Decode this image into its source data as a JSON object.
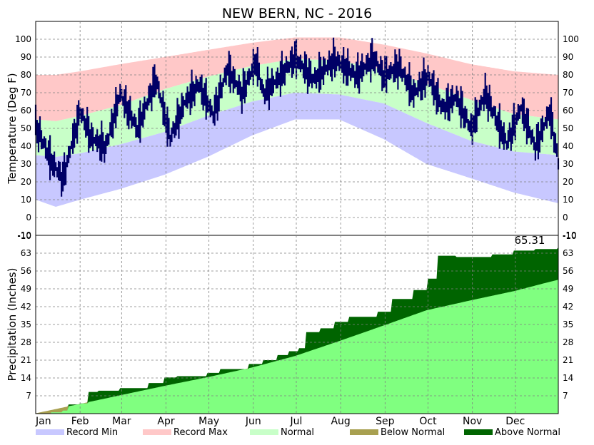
{
  "chart_data": {
    "type": "area",
    "title": "NEW BERN, NC - 2016",
    "months": [
      "Jan",
      "Feb",
      "Mar",
      "Apr",
      "May",
      "Jun",
      "Jul",
      "Aug",
      "Sep",
      "Oct",
      "Nov",
      "Dec"
    ],
    "temperature": {
      "ylabel": "Temperature (Deg F)",
      "ylim": [
        -10,
        110
      ],
      "yticks": [
        -10,
        0,
        10,
        20,
        30,
        40,
        50,
        60,
        70,
        80,
        90,
        100
      ],
      "grid": true,
      "bands": {
        "record_max": [
          [
            1,
            80
          ],
          [
            15,
            80
          ],
          [
            32,
            82
          ],
          [
            60,
            86
          ],
          [
            91,
            90
          ],
          [
            121,
            94
          ],
          [
            152,
            98
          ],
          [
            182,
            101
          ],
          [
            213,
            101
          ],
          [
            244,
            97
          ],
          [
            274,
            92
          ],
          [
            305,
            86
          ],
          [
            335,
            82
          ],
          [
            366,
            80
          ]
        ],
        "normal_max": [
          [
            1,
            55
          ],
          [
            15,
            54
          ],
          [
            32,
            57
          ],
          [
            60,
            63
          ],
          [
            91,
            72
          ],
          [
            121,
            79
          ],
          [
            152,
            85
          ],
          [
            182,
            89
          ],
          [
            213,
            88
          ],
          [
            244,
            83
          ],
          [
            274,
            75
          ],
          [
            305,
            66
          ],
          [
            335,
            58
          ],
          [
            366,
            55
          ]
        ],
        "normal_min": [
          [
            1,
            35
          ],
          [
            15,
            34
          ],
          [
            32,
            36
          ],
          [
            60,
            41
          ],
          [
            91,
            48
          ],
          [
            121,
            57
          ],
          [
            152,
            65
          ],
          [
            182,
            70
          ],
          [
            213,
            69
          ],
          [
            244,
            64
          ],
          [
            274,
            53
          ],
          [
            305,
            43
          ],
          [
            335,
            37
          ],
          [
            366,
            35
          ]
        ],
        "record_min": [
          [
            1,
            10
          ],
          [
            15,
            6
          ],
          [
            32,
            10
          ],
          [
            60,
            16
          ],
          [
            91,
            24
          ],
          [
            121,
            34
          ],
          [
            152,
            46
          ],
          [
            182,
            55
          ],
          [
            213,
            55
          ],
          [
            244,
            44
          ],
          [
            274,
            30
          ],
          [
            305,
            22
          ],
          [
            335,
            14
          ],
          [
            366,
            8
          ]
        ]
      },
      "observed_daily": [
        [
          1,
          52
        ],
        [
          12,
          32
        ],
        [
          20,
          22
        ],
        [
          32,
          60
        ],
        [
          40,
          45
        ],
        [
          50,
          40
        ],
        [
          60,
          70
        ],
        [
          72,
          50
        ],
        [
          85,
          78
        ],
        [
          95,
          45
        ],
        [
          105,
          65
        ],
        [
          115,
          75
        ],
        [
          125,
          58
        ],
        [
          135,
          84
        ],
        [
          145,
          70
        ],
        [
          155,
          88
        ],
        [
          160,
          70
        ],
        [
          170,
          78
        ],
        [
          182,
          90
        ],
        [
          195,
          78
        ],
        [
          210,
          89
        ],
        [
          225,
          80
        ],
        [
          237,
          90
        ],
        [
          244,
          80
        ],
        [
          255,
          85
        ],
        [
          265,
          70
        ],
        [
          275,
          80
        ],
        [
          285,
          62
        ],
        [
          295,
          68
        ],
        [
          305,
          50
        ],
        [
          315,
          70
        ],
        [
          330,
          42
        ],
        [
          340,
          62
        ],
        [
          350,
          40
        ],
        [
          360,
          60
        ],
        [
          366,
          32
        ]
      ]
    },
    "precipitation": {
      "ylabel": "Precipitation (Inches)",
      "ylim": [
        0,
        70
      ],
      "yticks": [
        7,
        14,
        21,
        28,
        35,
        42,
        49,
        56,
        63
      ],
      "grid": true,
      "total_label": "65.31",
      "normal_cumulative": [
        [
          0,
          0
        ],
        [
          31,
          3.7
        ],
        [
          60,
          7.2
        ],
        [
          91,
          10.9
        ],
        [
          121,
          14.3
        ],
        [
          152,
          18.1
        ],
        [
          182,
          22.6
        ],
        [
          213,
          28.5
        ],
        [
          244,
          34.6
        ],
        [
          274,
          40.6
        ],
        [
          305,
          44.5
        ],
        [
          335,
          48.1
        ],
        [
          366,
          52.6
        ]
      ],
      "observed_cumulative": [
        [
          1,
          0
        ],
        [
          12,
          0.5
        ],
        [
          20,
          1.2
        ],
        [
          24,
          3.6
        ],
        [
          32,
          4
        ],
        [
          38,
          8.5
        ],
        [
          45,
          9
        ],
        [
          60,
          10
        ],
        [
          80,
          12
        ],
        [
          91,
          14.2
        ],
        [
          100,
          14.7
        ],
        [
          121,
          16
        ],
        [
          130,
          17.5
        ],
        [
          150,
          19.5
        ],
        [
          160,
          21
        ],
        [
          170,
          23
        ],
        [
          178,
          24.5
        ],
        [
          185,
          25.7
        ],
        [
          190,
          32
        ],
        [
          200,
          33.5
        ],
        [
          210,
          36
        ],
        [
          220,
          38
        ],
        [
          240,
          40
        ],
        [
          250,
          45
        ],
        [
          265,
          48.5
        ],
        [
          275,
          53
        ],
        [
          282,
          62
        ],
        [
          295,
          61.5
        ],
        [
          320,
          62.5
        ],
        [
          335,
          64
        ],
        [
          350,
          64.6
        ],
        [
          366,
          65.31
        ]
      ]
    },
    "legend": [
      {
        "label": "Record Min",
        "color": "#c8c8ff"
      },
      {
        "label": "Record Max",
        "color": "#ffc8c8"
      },
      {
        "label": "Normal",
        "color": "#c8ffc8"
      },
      {
        "label": "Below Normal",
        "color": "#a8a050"
      },
      {
        "label": "Above Normal",
        "color": "#006400"
      }
    ],
    "colors": {
      "record_min": "#c8c8ff",
      "record_max": "#ffc8c8",
      "normal": "#c8ffc8",
      "observed": "#000066",
      "normal_precip": "#80ff80",
      "above_normal": "#006400",
      "below_normal": "#a8a050",
      "grid": "#808080"
    }
  }
}
